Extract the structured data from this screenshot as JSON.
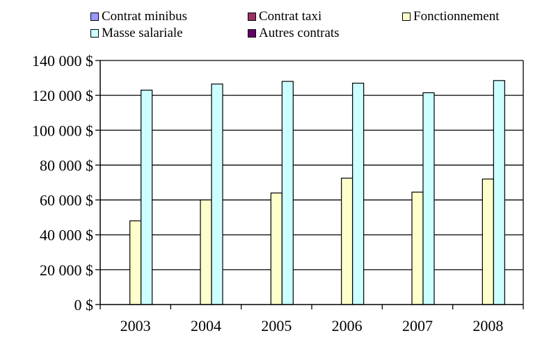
{
  "chart_data": {
    "type": "bar",
    "categories": [
      "2003",
      "2004",
      "2005",
      "2006",
      "2007",
      "2008"
    ],
    "series": [
      {
        "name": "Contrat minibus",
        "color": "#9999FF",
        "values": [
          0,
          0,
          0,
          0,
          0,
          0
        ]
      },
      {
        "name": "Contrat taxi",
        "color": "#993366",
        "values": [
          0,
          0,
          0,
          0,
          0,
          0
        ]
      },
      {
        "name": "Fonctionnement",
        "color": "#FFFFCC",
        "values": [
          48000,
          60000,
          64000,
          72500,
          64500,
          72000
        ]
      },
      {
        "name": "Masse salariale",
        "color": "#CCFFFF",
        "values": [
          123000,
          126500,
          128000,
          127000,
          121500,
          128500
        ]
      },
      {
        "name": "Autres contrats",
        "color": "#660066",
        "values": [
          0,
          0,
          0,
          0,
          0,
          0
        ]
      }
    ],
    "ylim": [
      0,
      140000
    ],
    "yticks": [
      0,
      20000,
      40000,
      60000,
      80000,
      100000,
      120000,
      140000
    ],
    "ytick_labels": [
      "0 $",
      "20 000 $",
      "40 000 $",
      "60 000 $",
      "80 000 $",
      "100 000 $",
      "120 000 $",
      "140 000 $"
    ],
    "grid": true,
    "legend_position": "top",
    "title": "",
    "xlabel": "",
    "ylabel": ""
  }
}
